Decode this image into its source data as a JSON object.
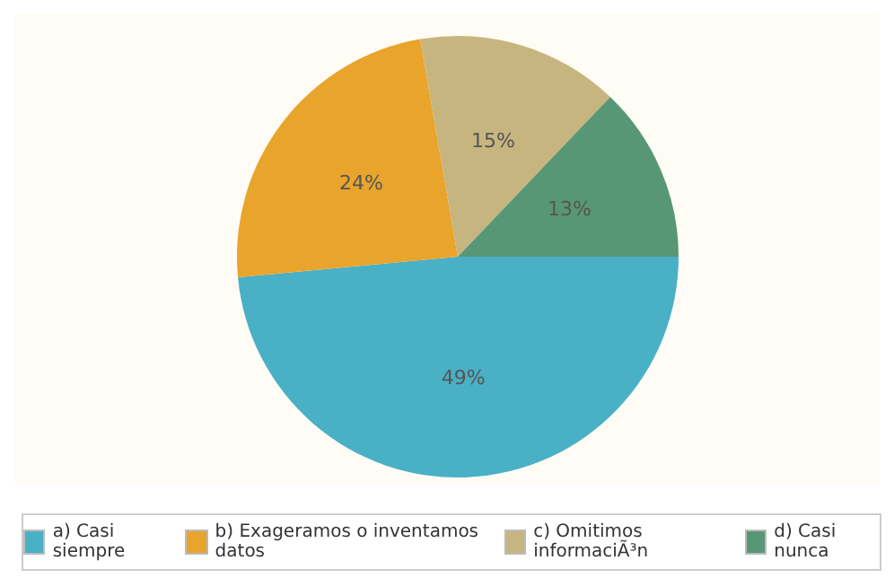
{
  "chart_data": {
    "type": "pie",
    "categories": [
      "a) Casi siempre",
      "b) Exageramos o inventamos datos",
      "c) Omitimos informaciÃ³n",
      "d) Casi nunca"
    ],
    "values": [
      49,
      24,
      15,
      13
    ],
    "colors": [
      "#4ab0c6",
      "#e9a42c",
      "#c7b580",
      "#589776"
    ],
    "value_labels": [
      "49%",
      "24%",
      "15%",
      "13%"
    ],
    "legend": "bottom"
  }
}
